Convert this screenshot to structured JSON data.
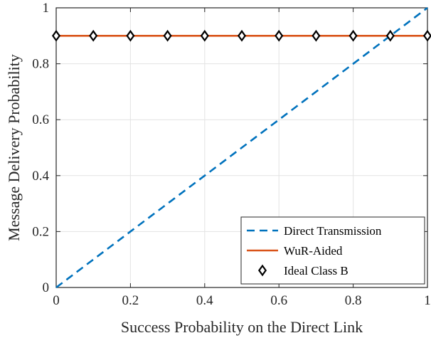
{
  "chart_data": {
    "type": "line",
    "xlabel": "Success Probability on the Direct Link",
    "ylabel": "Message Delivery Probability",
    "xlim": [
      0,
      1
    ],
    "ylim": [
      0,
      1
    ],
    "xticks": [
      0,
      0.2,
      0.4,
      0.6,
      0.8,
      1
    ],
    "yticks": [
      0,
      0.2,
      0.4,
      0.6,
      0.8,
      1
    ],
    "xtick_labels": [
      "0",
      "0.2",
      "0.4",
      "0.6",
      "0.8",
      "1"
    ],
    "ytick_labels": [
      "0",
      "0.2",
      "0.4",
      "0.6",
      "0.8",
      "1"
    ],
    "grid": true,
    "legend_position": "bottom-right",
    "series": [
      {
        "name": "Direct Transmission",
        "style": "dashed-line",
        "color": "#0072BD",
        "x": [
          0,
          1
        ],
        "y": [
          0,
          1
        ]
      },
      {
        "name": "WuR-Aided",
        "style": "solid-line",
        "color": "#D95319",
        "x": [
          0,
          1
        ],
        "y": [
          0.9,
          0.9
        ]
      },
      {
        "name": "Ideal Class B",
        "style": "diamond-markers",
        "color": "#000000",
        "x": [
          0,
          0.1,
          0.2,
          0.3,
          0.4,
          0.5,
          0.6,
          0.7,
          0.8,
          0.9,
          1.0
        ],
        "y": [
          0.9,
          0.9,
          0.9,
          0.9,
          0.9,
          0.9,
          0.9,
          0.9,
          0.9,
          0.9,
          0.9
        ]
      }
    ]
  }
}
